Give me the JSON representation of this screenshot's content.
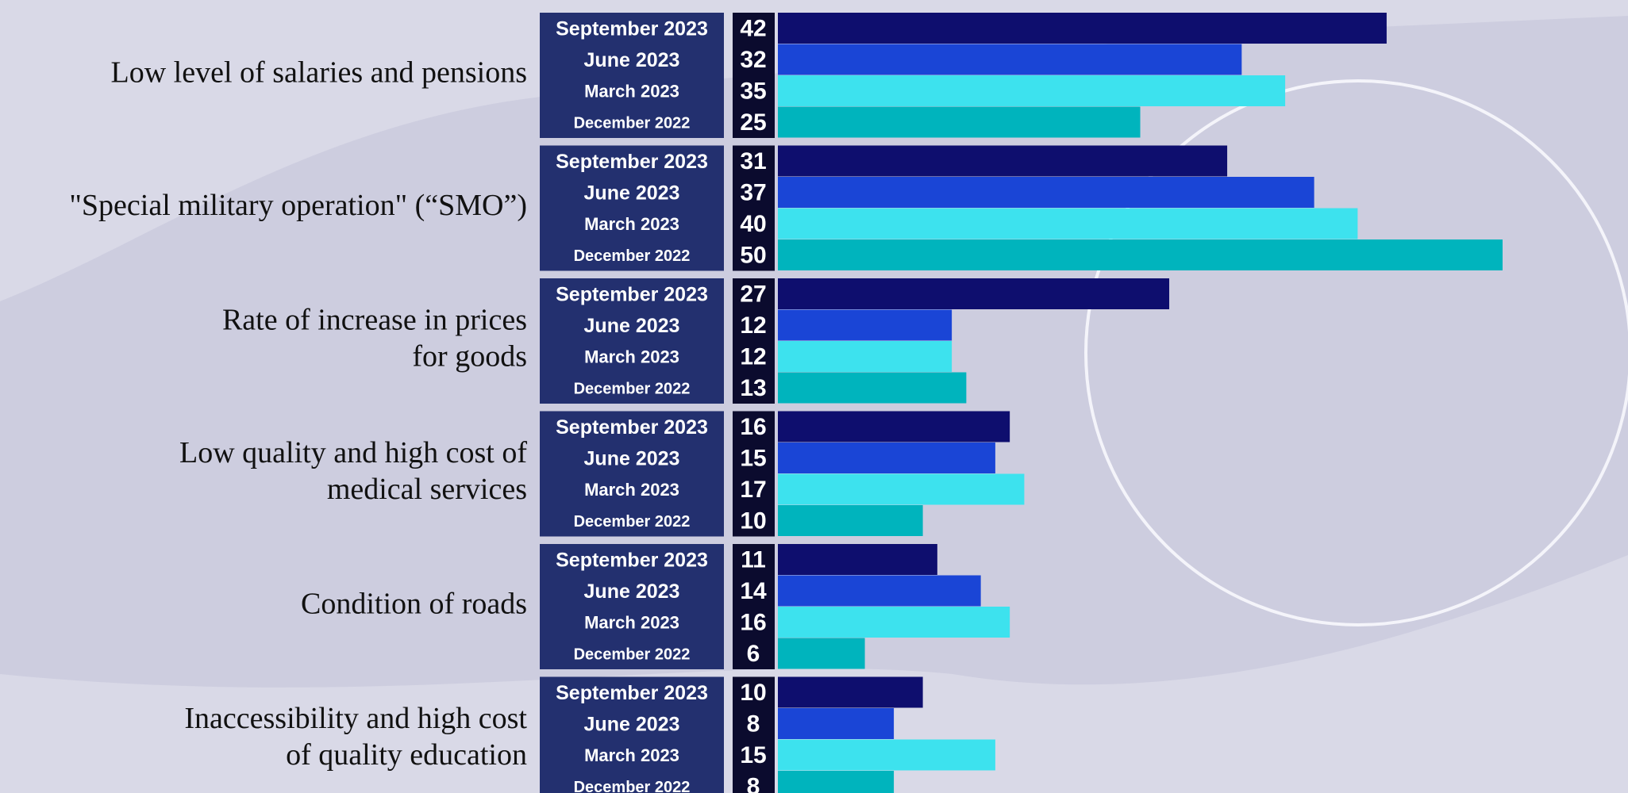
{
  "chart_data": {
    "type": "bar",
    "orientation": "horizontal",
    "categories": [
      [
        "Low level of salaries and pensions"
      ],
      [
        "\"Special military operation\" (“SMO”)"
      ],
      [
        "Rate of increase in prices",
        "for goods"
      ],
      [
        "Low quality and high cost of",
        "medical services"
      ],
      [
        "Condition of roads"
      ],
      [
        "Inaccessibility and high cost",
        "of quality education"
      ]
    ],
    "series": [
      {
        "name": "September 2023",
        "color": "#0e0e6e",
        "values": [
          42,
          31,
          27,
          16,
          11,
          10
        ]
      },
      {
        "name": "June 2023",
        "color": "#1a45d6",
        "values": [
          32,
          37,
          12,
          15,
          14,
          8
        ]
      },
      {
        "name": "March 2023",
        "color": "#3de2ee",
        "values": [
          35,
          40,
          12,
          17,
          16,
          15
        ]
      },
      {
        "name": "December 2022",
        "color": "#00b4bd",
        "values": [
          25,
          50,
          13,
          10,
          6,
          8
        ]
      }
    ]
  }
}
